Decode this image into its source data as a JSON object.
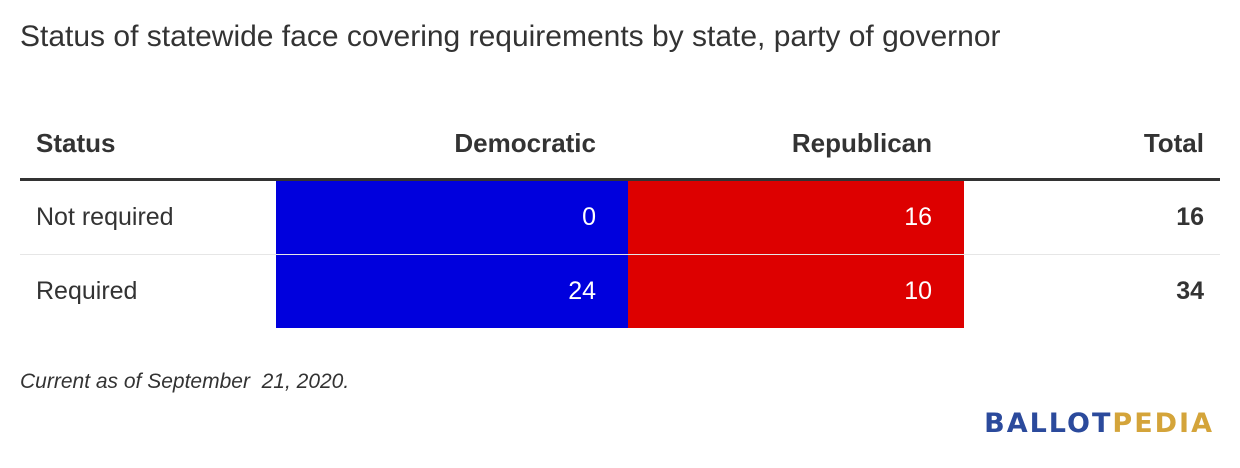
{
  "title": "Status of statewide face covering requirements by state, party of governor",
  "colors": {
    "democratic": "#0000dd",
    "republican": "#dd0000",
    "text": "#333333",
    "logo_blue": "#2b4a9c",
    "logo_gold": "#d4a43a"
  },
  "table": {
    "headers": {
      "status": "Status",
      "democratic": "Democratic",
      "republican": "Republican",
      "total": "Total"
    },
    "rows": [
      {
        "status": "Not required",
        "democratic": "0",
        "republican": "16",
        "total": "16"
      },
      {
        "status": "Required",
        "democratic": "24",
        "republican": "10",
        "total": "34"
      }
    ]
  },
  "chart_data": {
    "type": "table",
    "title": "Status of statewide face covering requirements by state, party of governor",
    "columns": [
      "Status",
      "Democratic",
      "Republican",
      "Total"
    ],
    "categories": [
      "Not required",
      "Required"
    ],
    "series": [
      {
        "name": "Democratic",
        "values": [
          0,
          24
        ]
      },
      {
        "name": "Republican",
        "values": [
          16,
          10
        ]
      },
      {
        "name": "Total",
        "values": [
          16,
          34
        ]
      }
    ]
  },
  "footnote": "Current as of September  21, 2020.",
  "logo": {
    "part1": "BALLOT",
    "part2": "PEDIA"
  }
}
